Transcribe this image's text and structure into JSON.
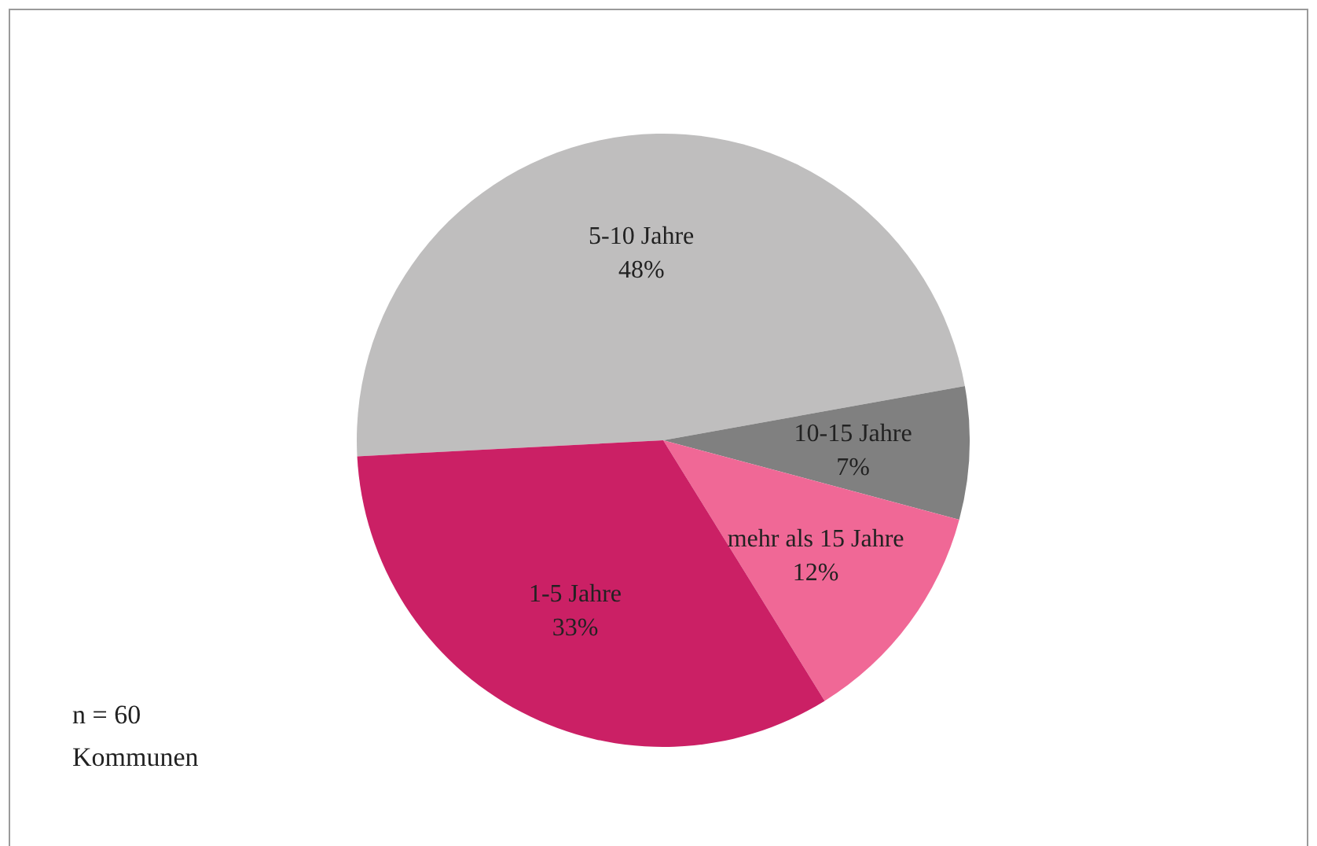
{
  "chart_data": {
    "type": "pie",
    "categories": [
      "5-10 Jahre",
      "10-15 Jahre",
      "mehr als 15 Jahre",
      "1-5 Jahre"
    ],
    "values": [
      48,
      7,
      12,
      33
    ],
    "value_labels": [
      "48%",
      "7%",
      "12%",
      "33%"
    ],
    "colors": [
      "#bfbebe",
      "#808080",
      "#f06896",
      "#cb2065"
    ],
    "annotations": [
      "n = 60",
      "Kommunen"
    ]
  }
}
